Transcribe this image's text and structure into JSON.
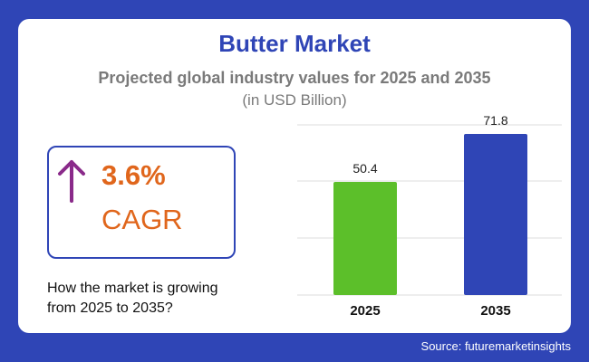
{
  "header": {
    "title": "Butter Market",
    "subtitle": "Projected global industry values for 2025 and 2035",
    "unit": "(in USD Billion)"
  },
  "cagr": {
    "value": "3.6%",
    "label": "CAGR",
    "icon": "up-arrow-icon",
    "arrow_color": "#8a2a8a",
    "text_color": "#e0661c"
  },
  "question": {
    "line1": "How the market is growing",
    "line2": "from 2025 to 2035?"
  },
  "footer": {
    "source": "Source: futuremarketinsights"
  },
  "colors": {
    "background": "#2f45b6",
    "card": "#ffffff"
  },
  "chart_data": {
    "type": "bar",
    "categories": [
      "2025",
      "2035"
    ],
    "values": [
      50.4,
      71.8
    ],
    "value_labels": [
      "50.4",
      "71.8"
    ],
    "bar_colors": [
      "#5cbf2a",
      "#2f45b6"
    ],
    "ylim": [
      0,
      71.8
    ],
    "grid": true
  }
}
